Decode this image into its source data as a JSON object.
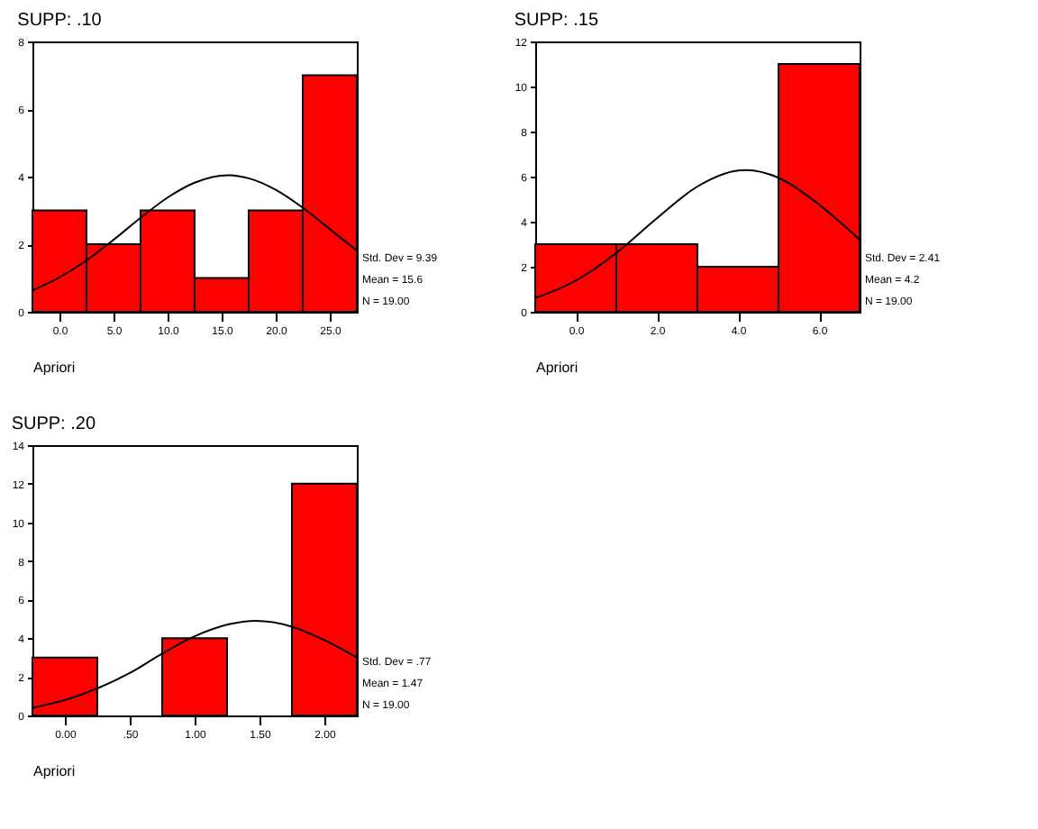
{
  "chart_data": [
    {
      "type": "histogram",
      "title": "SUPP: .10",
      "xlabel": "Apriori",
      "bins": [
        -2.5,
        2.5,
        7.5,
        12.5,
        17.5,
        22.5,
        27.5
      ],
      "values": [
        3,
        2,
        3,
        1,
        3,
        7
      ],
      "color": "#ff0000",
      "series": [
        {
          "type": "line",
          "color": "#000000",
          "x": [
            -2.5,
            0,
            2.5,
            5,
            7.5,
            10,
            12.5,
            15.6,
            17.5,
            20,
            22.5,
            25,
            27.5
          ],
          "values": [
            0.63,
            1.02,
            1.52,
            2.13,
            2.78,
            3.38,
            3.82,
            4.04,
            3.95,
            3.61,
            3.08,
            2.45,
            1.81
          ]
        }
      ],
      "xlim": [
        -2.5,
        27.5
      ],
      "xticks": [
        {
          "value": 0,
          "label": "0.0"
        },
        {
          "value": 5,
          "label": "5.0"
        },
        {
          "value": 10,
          "label": "10.0"
        },
        {
          "value": 15,
          "label": "15.0"
        },
        {
          "value": 20,
          "label": "20.0"
        },
        {
          "value": 25,
          "label": "25.0"
        }
      ],
      "ylim": [
        0,
        8
      ],
      "yticks": [
        0,
        2,
        4,
        6,
        8
      ],
      "annotations": [
        "Std. Dev = 9.39",
        "Mean = 15.6",
        "N = 19.00"
      ]
    },
    {
      "type": "histogram",
      "title": "SUPP: .15",
      "xlabel": "Apriori",
      "bins": [
        -1,
        1,
        3,
        5,
        7
      ],
      "values": [
        3,
        3,
        2,
        11
      ],
      "color": "#ff0000",
      "series": [
        {
          "type": "line",
          "color": "#000000",
          "x": [
            -1,
            0,
            1,
            2,
            3,
            4,
            4.2,
            5,
            6,
            7
          ],
          "values": [
            0.61,
            1.38,
            2.61,
            4.15,
            5.56,
            6.27,
            6.29,
            5.95,
            4.76,
            3.2
          ]
        }
      ],
      "xlim": [
        -1,
        7
      ],
      "xticks": [
        {
          "value": 0,
          "label": "0.0"
        },
        {
          "value": 2,
          "label": "2.0"
        },
        {
          "value": 4,
          "label": "4.0"
        },
        {
          "value": 6,
          "label": "6.0"
        }
      ],
      "ylim": [
        0,
        12
      ],
      "yticks": [
        0,
        2,
        4,
        6,
        8,
        10,
        12
      ],
      "annotations": [
        "Std. Dev = 2.41",
        "Mean = 4.2",
        "N = 19.00"
      ]
    },
    {
      "type": "histogram",
      "title": "SUPP: .20",
      "xlabel": "Apriori",
      "bins": [
        -0.25,
        0.25,
        0.75,
        1.25,
        1.75,
        2.25
      ],
      "values": [
        3,
        0,
        4,
        0,
        12
      ],
      "color": "#ff0000",
      "series": [
        {
          "type": "line",
          "color": "#000000",
          "x": [
            -0.25,
            0,
            0.25,
            0.5,
            0.75,
            1,
            1.25,
            1.47,
            1.75,
            2,
            2.25
          ],
          "values": [
            0.4,
            0.8,
            1.4,
            2.2,
            3.2,
            4.1,
            4.7,
            4.9,
            4.6,
            3.9,
            3
          ]
        }
      ],
      "xlim": [
        -0.25,
        2.25
      ],
      "xticks": [
        {
          "value": 0,
          "label": "0.00"
        },
        {
          "value": 0.5,
          "label": ".50"
        },
        {
          "value": 1,
          "label": "1.00"
        },
        {
          "value": 1.5,
          "label": "1.50"
        },
        {
          "value": 2,
          "label": "2.00"
        }
      ],
      "ylim": [
        0,
        14
      ],
      "yticks": [
        0,
        2,
        4,
        6,
        8,
        10,
        12,
        14
      ],
      "annotations": [
        "Std. Dev = .77",
        "Mean = 1.47",
        "N = 19.00"
      ]
    }
  ]
}
